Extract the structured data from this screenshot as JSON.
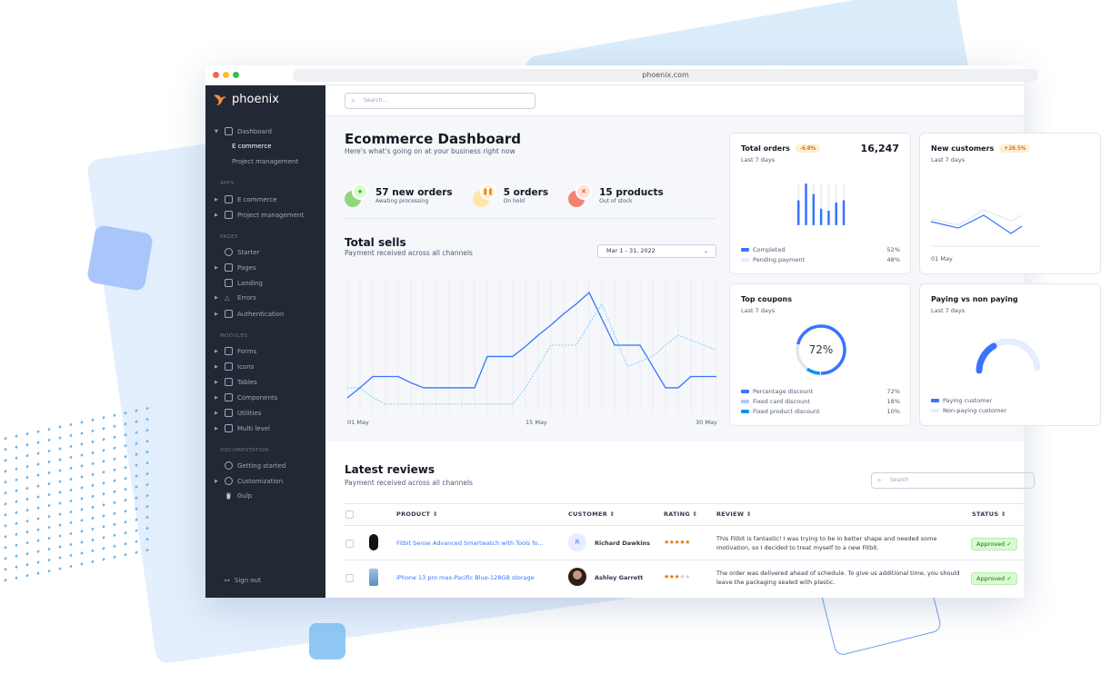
{
  "browser": {
    "url": "phoenix.com"
  },
  "sidebar": {
    "logo": "phoenix",
    "dashboard": {
      "label": "Dashboard",
      "children": [
        "E commerce",
        "Project management"
      ]
    },
    "sections": [
      {
        "title": "APPS",
        "items": [
          {
            "label": "E commerce",
            "icon": "cart-icon"
          },
          {
            "label": "Project management",
            "icon": "clipboard-icon"
          }
        ]
      },
      {
        "title": "PAGES",
        "items": [
          {
            "label": "Starter",
            "icon": "compass-icon"
          },
          {
            "label": "Pages",
            "icon": "layout-icon"
          },
          {
            "label": "Landing",
            "icon": "monitor-icon"
          },
          {
            "label": "Errors",
            "icon": "alert-triangle-icon"
          },
          {
            "label": "Authentication",
            "icon": "lock-icon"
          }
        ]
      },
      {
        "title": "MODULES",
        "items": [
          {
            "label": "Forms",
            "icon": "file-text-icon"
          },
          {
            "label": "Icons",
            "icon": "grid-icon"
          },
          {
            "label": "Tables",
            "icon": "columns-icon"
          },
          {
            "label": "Components",
            "icon": "package-icon"
          },
          {
            "label": "Utilities",
            "icon": "tool-icon"
          },
          {
            "label": "Multi level",
            "icon": "layers-icon"
          }
        ]
      },
      {
        "title": "DOCUMENTATION",
        "items": [
          {
            "label": "Getting started",
            "icon": "life-buoy-icon"
          },
          {
            "label": "Customization",
            "icon": "settings-icon"
          },
          {
            "label": "Gulp",
            "icon": "gulp-icon"
          }
        ]
      }
    ],
    "signout": "Sign out"
  },
  "topbar": {
    "search_placeholder": "Search..."
  },
  "header": {
    "title": "Ecommerce Dashboard",
    "subtitle": "Here's what's going on at your business right now"
  },
  "stats": [
    {
      "title": "57 new orders",
      "subtitle": "Awating processing",
      "icon": "star-icon",
      "color": "#25b003"
    },
    {
      "title": "5 orders",
      "subtitle": "On hold",
      "icon": "pause-icon",
      "color": "#e5780b"
    },
    {
      "title": "15 products",
      "subtitle": "Out of stock",
      "icon": "x-icon",
      "color": "#ec1f00"
    }
  ],
  "total_sells": {
    "title": "Total sells",
    "subtitle": "Payment received across all channels",
    "date_range": "Mar 1 - 31, 2022",
    "chart_data": {
      "type": "line",
      "x_ticks": [
        "01 May",
        "15 May",
        "30 May"
      ],
      "grid": "vertical",
      "series": [
        {
          "style": "solid",
          "color": "#3874ff",
          "values": [
            8,
            16,
            25,
            25,
            25,
            20,
            16,
            16,
            16,
            16,
            16,
            41,
            41,
            41,
            49,
            58,
            66,
            75,
            83,
            92,
            71,
            50,
            50,
            50,
            33,
            16,
            16,
            25,
            25,
            25
          ]
        },
        {
          "style": "dashed",
          "color": "#60c6ff",
          "values": [
            16,
            16,
            8,
            3,
            3,
            3,
            3,
            3,
            3,
            3,
            3,
            3,
            3,
            3,
            16,
            33,
            50,
            50,
            50,
            67,
            83,
            58,
            33,
            37,
            41,
            50,
            58,
            54,
            50,
            46
          ]
        }
      ]
    }
  },
  "cards": {
    "total_orders": {
      "title": "Total orders",
      "badge": "-6.8%",
      "value": "16,247",
      "period": "Last 7 days",
      "chart_data": {
        "type": "bar",
        "values": [
          0.6,
          1,
          0.75,
          0.4,
          0.35,
          0.55,
          0.6
        ]
      },
      "legend": [
        {
          "label": "Completed",
          "value": "52%",
          "color": "#3874ff"
        },
        {
          "label": "Pending payment",
          "value": "48%",
          "color": "#e5edff"
        }
      ]
    },
    "new_customers": {
      "title": "New customers",
      "badge": "+26.5%",
      "period": "Last 7 days",
      "x_tick": "01 May"
    },
    "top_coupons": {
      "title": "Top coupons",
      "period": "Last 7 days",
      "center": "72%",
      "chart_data": {
        "type": "pie",
        "values": [
          72,
          18,
          10
        ]
      },
      "legend": [
        {
          "label": "Percentage discount",
          "value": "72%",
          "color": "#3874ff"
        },
        {
          "label": "Fixed card discount",
          "value": "18%",
          "color": "#adc8ff"
        },
        {
          "label": "Fixed product discount",
          "value": "10%",
          "color": "#0097eb"
        }
      ]
    },
    "paying": {
      "title": "Paying vs non paying",
      "period": "Last 7 days",
      "legend": [
        {
          "label": "Paying customer",
          "color": "#3874ff"
        },
        {
          "label": "Non-paying customer",
          "color": "#e5edff"
        }
      ]
    }
  },
  "reviews": {
    "title": "Latest reviews",
    "subtitle": "Payment received across all channels",
    "search_placeholder": "Search",
    "columns": [
      "PRODUCT",
      "CUSTOMER",
      "RATING",
      "REVIEW",
      "STATUS"
    ],
    "rows": [
      {
        "product": "Fitbit Sense Advanced Smartwatch with Tools fo...",
        "customer": "Richard Dawkins",
        "avatar_initial": "R",
        "rating": 5,
        "review": [
          "This Fitbit is fantastic! I was trying to be in better shape and needed some",
          "motivation, so I decided to treat myself to a new Fitbit."
        ],
        "status": "Approved"
      },
      {
        "product": "iPhone 13 pro max-Pacific Blue-128GB storage",
        "customer": "Ashley Garrett",
        "avatar_initial": "",
        "rating": 3,
        "review": [
          "The order was delivered ahead of schedule. To give us additional time, you should",
          "leave the packaging sealed with plastic."
        ],
        "status": "Approved"
      }
    ]
  }
}
